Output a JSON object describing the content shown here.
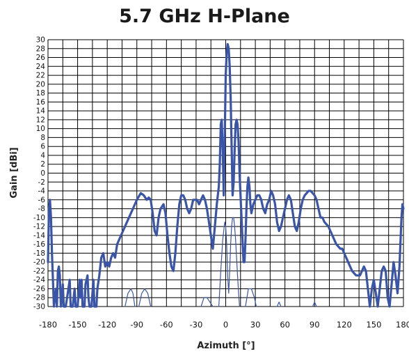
{
  "chart_data": {
    "type": "line",
    "title": "5.7 GHz H-Plane",
    "xlabel": "Azimuth [°]",
    "ylabel": "Gain [dBi]",
    "xlim": [
      -180,
      180
    ],
    "ylim": [
      -30,
      30
    ],
    "x_ticks": [
      -180,
      -150,
      -120,
      -90,
      -60,
      -30,
      0,
      30,
      60,
      90,
      120,
      150,
      180
    ],
    "y_ticks": [
      30,
      28,
      26,
      24,
      22,
      20,
      18,
      16,
      14,
      12,
      10,
      8,
      6,
      4,
      2,
      0,
      -2,
      -4,
      -6,
      -8,
      -10,
      -12,
      -14,
      -16,
      -18,
      -20,
      -22,
      -24,
      -26,
      -28,
      -30
    ],
    "grid": true,
    "colors": {
      "series": "#3a55a8",
      "grid": "#000000",
      "axis_text": "#111111"
    },
    "series": [
      {
        "style": "main",
        "points": [
          [
            -180,
            -20
          ],
          [
            -179,
            -8
          ],
          [
            -178,
            -6
          ],
          [
            -177,
            -10
          ],
          [
            -176,
            -18
          ],
          [
            -175,
            -24
          ],
          [
            -174,
            -30
          ],
          [
            -173,
            -28
          ],
          [
            -172,
            -26
          ],
          [
            -171,
            -30
          ],
          [
            -170,
            -22
          ],
          [
            -169,
            -21
          ],
          [
            -168,
            -23
          ],
          [
            -167,
            -30
          ],
          [
            -166,
            -28
          ],
          [
            -165,
            -25
          ],
          [
            -164,
            -30
          ],
          [
            -162,
            -30
          ],
          [
            -160,
            -27
          ],
          [
            -158,
            -24
          ],
          [
            -157,
            -30
          ],
          [
            -155,
            -30
          ],
          [
            -153,
            -26
          ],
          [
            -152,
            -30
          ],
          [
            -150,
            -30
          ],
          [
            -148,
            -24
          ],
          [
            -147,
            -28
          ],
          [
            -146,
            -24
          ],
          [
            -145,
            -30
          ],
          [
            -143,
            -30
          ],
          [
            -142,
            -25
          ],
          [
            -140,
            -23
          ],
          [
            -139,
            -28
          ],
          [
            -138,
            -30
          ],
          [
            -136,
            -30
          ],
          [
            -134,
            -24
          ],
          [
            -133,
            -30
          ],
          [
            -131,
            -30
          ],
          [
            -130,
            -26
          ],
          [
            -128,
            -23
          ],
          [
            -126,
            -19
          ],
          [
            -124,
            -18
          ],
          [
            -122,
            -21
          ],
          [
            -120,
            -20
          ],
          [
            -118,
            -21
          ],
          [
            -116,
            -19
          ],
          [
            -114,
            -18
          ],
          [
            -112,
            -19
          ],
          [
            -110,
            -16
          ],
          [
            -106,
            -14
          ],
          [
            -102,
            -12
          ],
          [
            -98,
            -10
          ],
          [
            -94,
            -8
          ],
          [
            -90,
            -6
          ],
          [
            -86,
            -4.5
          ],
          [
            -83,
            -5
          ],
          [
            -80,
            -6
          ],
          [
            -78,
            -5.5
          ],
          [
            -76,
            -6
          ],
          [
            -74,
            -9
          ],
          [
            -72,
            -13
          ],
          [
            -70,
            -14
          ],
          [
            -68,
            -10
          ],
          [
            -66,
            -8
          ],
          [
            -63,
            -7
          ],
          [
            -61,
            -9
          ],
          [
            -59,
            -14
          ],
          [
            -57,
            -18
          ],
          [
            -55,
            -21
          ],
          [
            -53,
            -22
          ],
          [
            -51,
            -18
          ],
          [
            -49,
            -12
          ],
          [
            -47,
            -7
          ],
          [
            -45,
            -5
          ],
          [
            -43,
            -5
          ],
          [
            -41,
            -6
          ],
          [
            -39,
            -8
          ],
          [
            -37,
            -9
          ],
          [
            -35,
            -8
          ],
          [
            -33,
            -6
          ],
          [
            -31,
            -6
          ],
          [
            -29,
            -6
          ],
          [
            -27,
            -7
          ],
          [
            -25,
            -6
          ],
          [
            -23,
            -5
          ],
          [
            -21,
            -6
          ],
          [
            -19,
            -8
          ],
          [
            -17,
            -11
          ],
          [
            -15,
            -14
          ],
          [
            -13,
            -17
          ],
          [
            -11,
            -12
          ],
          [
            -9,
            -7
          ],
          [
            -7,
            -3
          ],
          [
            -6,
            2
          ],
          [
            -5,
            11
          ],
          [
            -4,
            12
          ],
          [
            -3,
            5
          ],
          [
            -2,
            -5
          ],
          [
            -1,
            8
          ],
          [
            0,
            22
          ],
          [
            1,
            27
          ],
          [
            2,
            29
          ],
          [
            3,
            28
          ],
          [
            4,
            24
          ],
          [
            5,
            17
          ],
          [
            6,
            6
          ],
          [
            7,
            -5
          ],
          [
            8,
            -2
          ],
          [
            9,
            5
          ],
          [
            10,
            11
          ],
          [
            11,
            12
          ],
          [
            12,
            11
          ],
          [
            13,
            7
          ],
          [
            14,
            0
          ],
          [
            15,
            -5
          ],
          [
            16,
            -10
          ],
          [
            17,
            -15
          ],
          [
            18,
            -20
          ],
          [
            19,
            -20
          ],
          [
            20,
            -15
          ],
          [
            21,
            -8
          ],
          [
            22,
            -3
          ],
          [
            23,
            -1
          ],
          [
            24,
            -3
          ],
          [
            25,
            -7
          ],
          [
            26,
            -9
          ],
          [
            28,
            -7
          ],
          [
            30,
            -6
          ],
          [
            32,
            -5
          ],
          [
            34,
            -5
          ],
          [
            36,
            -6
          ],
          [
            38,
            -8
          ],
          [
            40,
            -9
          ],
          [
            42,
            -7
          ],
          [
            44,
            -6
          ],
          [
            46,
            -4
          ],
          [
            48,
            -5
          ],
          [
            50,
            -7
          ],
          [
            52,
            -11
          ],
          [
            54,
            -13
          ],
          [
            56,
            -12
          ],
          [
            58,
            -10
          ],
          [
            60,
            -8
          ],
          [
            62,
            -6
          ],
          [
            64,
            -5
          ],
          [
            66,
            -6
          ],
          [
            68,
            -9
          ],
          [
            70,
            -12
          ],
          [
            72,
            -13
          ],
          [
            74,
            -11
          ],
          [
            76,
            -8
          ],
          [
            78,
            -6
          ],
          [
            80,
            -5
          ],
          [
            82,
            -4.5
          ],
          [
            84,
            -4
          ],
          [
            86,
            -4
          ],
          [
            88,
            -4.5
          ],
          [
            90,
            -5
          ],
          [
            92,
            -6
          ],
          [
            94,
            -8
          ],
          [
            96,
            -10
          ],
          [
            98,
            -10
          ],
          [
            100,
            -11
          ],
          [
            104,
            -12
          ],
          [
            108,
            -14
          ],
          [
            112,
            -16
          ],
          [
            116,
            -17
          ],
          [
            118,
            -17
          ],
          [
            120,
            -18
          ],
          [
            124,
            -20
          ],
          [
            128,
            -22
          ],
          [
            132,
            -23
          ],
          [
            136,
            -23
          ],
          [
            138,
            -22
          ],
          [
            140,
            -21
          ],
          [
            142,
            -22
          ],
          [
            144,
            -26
          ],
          [
            146,
            -30
          ],
          [
            148,
            -26
          ],
          [
            150,
            -24
          ],
          [
            152,
            -27
          ],
          [
            154,
            -30
          ],
          [
            156,
            -26
          ],
          [
            158,
            -22
          ],
          [
            160,
            -21
          ],
          [
            162,
            -22
          ],
          [
            164,
            -28
          ],
          [
            166,
            -30
          ],
          [
            168,
            -25
          ],
          [
            170,
            -20
          ],
          [
            172,
            -23
          ],
          [
            174,
            -27
          ],
          [
            176,
            -21
          ],
          [
            178,
            -10
          ],
          [
            179,
            -7
          ],
          [
            180,
            -8
          ]
        ]
      },
      {
        "style": "thin-center",
        "points": [
          [
            -7,
            -30
          ],
          [
            -5,
            -22
          ],
          [
            -3,
            -15
          ],
          [
            -1,
            -11
          ],
          [
            0,
            -12
          ],
          [
            1,
            -16
          ],
          [
            2,
            -23
          ],
          [
            3,
            -27
          ],
          [
            4,
            -22
          ],
          [
            5,
            -16
          ],
          [
            6,
            -12
          ],
          [
            7,
            -10
          ],
          [
            8,
            -10
          ],
          [
            9,
            -12
          ],
          [
            10,
            -15
          ],
          [
            11,
            -19
          ],
          [
            12,
            -23
          ],
          [
            13,
            -27
          ],
          [
            14,
            -30
          ]
        ]
      },
      {
        "style": "thin",
        "points": [
          [
            -102,
            -30
          ],
          [
            -99,
            -27
          ],
          [
            -96,
            -26
          ],
          [
            -94,
            -27
          ],
          [
            -92,
            -30
          ]
        ]
      },
      {
        "style": "thin",
        "points": [
          [
            -88,
            -30
          ],
          [
            -85,
            -27
          ],
          [
            -82,
            -26
          ],
          [
            -79,
            -27
          ],
          [
            -76,
            -30
          ]
        ]
      },
      {
        "style": "thin",
        "points": [
          [
            -25,
            -30
          ],
          [
            -22,
            -28
          ],
          [
            -19,
            -28
          ],
          [
            -16,
            -29
          ],
          [
            -13,
            -30
          ]
        ]
      },
      {
        "style": "thin",
        "points": [
          [
            20,
            -30
          ],
          [
            23,
            -26
          ],
          [
            26,
            -26
          ],
          [
            29,
            -28
          ],
          [
            31,
            -30
          ]
        ]
      },
      {
        "style": "thin",
        "points": [
          [
            52,
            -30
          ],
          [
            54,
            -29
          ],
          [
            56,
            -30
          ]
        ]
      },
      {
        "style": "thin",
        "points": [
          [
            88,
            -30
          ],
          [
            90,
            -29
          ],
          [
            92,
            -30
          ]
        ]
      }
    ]
  }
}
